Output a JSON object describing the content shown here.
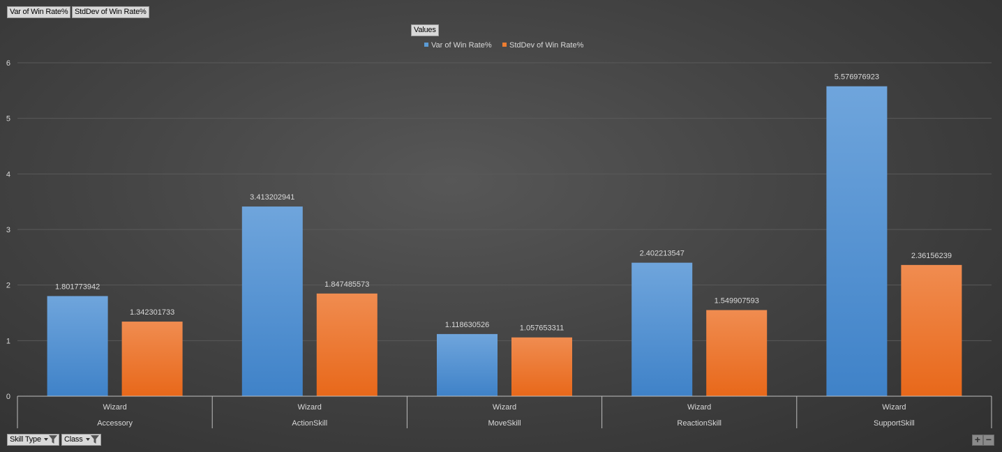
{
  "field_buttons": {
    "value_1": "Var of Win Rate%",
    "value_2": "StdDev of Win Rate%",
    "legend_title": "Values",
    "axis_field_1": "Skill Type",
    "axis_field_2": "Class"
  },
  "colors": {
    "series_1": "#5b9bd5",
    "series_2": "#ed7d31",
    "grid": "#5a5a5a",
    "text": "#d9d9d9"
  },
  "chart_data": {
    "type": "bar",
    "categories": [
      "Accessory",
      "ActionSkill",
      "MoveSkill",
      "ReactionSkill",
      "SupportSkill"
    ],
    "subcategories": [
      "Wizard",
      "Wizard",
      "Wizard",
      "Wizard",
      "Wizard"
    ],
    "series": [
      {
        "name": "Var of Win Rate%",
        "values": [
          1.801773942,
          3.413202941,
          1.118630526,
          2.402213547,
          5.576976923
        ],
        "labels": [
          "1.801773942",
          "3.413202941",
          "1.118630526",
          "2.402213547",
          "5.576976923"
        ]
      },
      {
        "name": "StdDev of Win Rate%",
        "values": [
          1.342301733,
          1.847485573,
          1.057653311,
          1.549907593,
          2.36156239
        ],
        "labels": [
          "1.342301733",
          "1.847485573",
          "1.057653311",
          "1.549907593",
          "2.36156239"
        ]
      }
    ],
    "yticks": [
      "0",
      "1",
      "2",
      "3",
      "4",
      "5",
      "6"
    ],
    "ylim": [
      0,
      6
    ],
    "grid": true,
    "legend_position": "top-center"
  },
  "zoom": {
    "plus": "+",
    "minus": "−"
  }
}
